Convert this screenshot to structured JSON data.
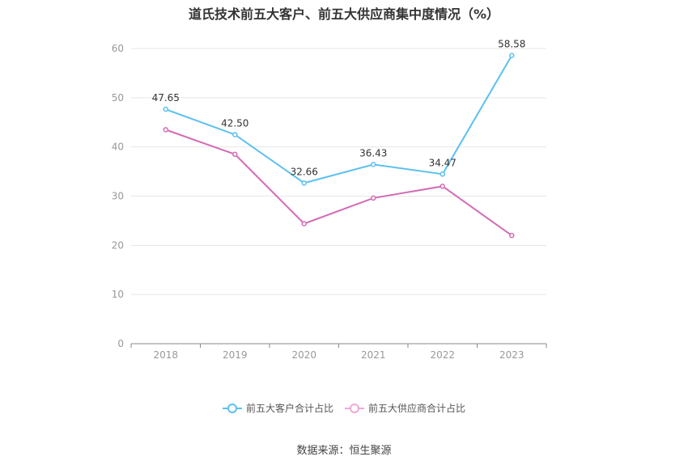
{
  "chart_data": {
    "type": "line",
    "title": "道氏技术前五大客户、前五大供应商集中度情况（%）",
    "categories": [
      "2018",
      "2019",
      "2020",
      "2021",
      "2022",
      "2023"
    ],
    "ylim": [
      0,
      60
    ],
    "yticks": [
      0,
      10,
      20,
      30,
      40,
      50,
      60
    ],
    "grid": true,
    "legend_position": "bottom",
    "series": [
      {
        "name": "前五大客户合计占比",
        "color": "#5bc0f0",
        "values": [
          47.65,
          42.5,
          32.66,
          36.43,
          34.47,
          58.58
        ],
        "labels": [
          "47.65",
          "42.50",
          "32.66",
          "36.43",
          "34.47",
          "58.58"
        ]
      },
      {
        "name": "前五大供应商合计占比",
        "color": "#d46bb5",
        "values": [
          43.5,
          38.5,
          24.4,
          29.6,
          32.0,
          22.0
        ]
      }
    ]
  },
  "source": "数据来源：恒生聚源"
}
